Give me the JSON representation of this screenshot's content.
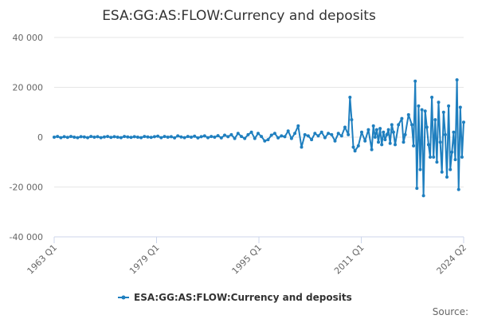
{
  "chart_data": {
    "type": "line",
    "title": "ESA:GG:AS:FLOW:Currency and deposits",
    "xlabel": "",
    "ylabel": "",
    "x_ticks": [
      "1963 Q1",
      "1979 Q1",
      "1995 Q1",
      "2011 Q1",
      "2024 Q2"
    ],
    "y_ticks": [
      "40 000",
      "20 000",
      "0",
      "-20 000",
      "-40 000"
    ],
    "ylim": [
      -40000,
      40000
    ],
    "xlim": [
      0,
      245
    ],
    "grid": true,
    "legend_position": "bottom",
    "source_label": "Source:",
    "series": [
      {
        "name": "ESA:GG:AS:FLOW:Currency and deposits",
        "color": "#1f7fbf",
        "points": [
          [
            0,
            0
          ],
          [
            2,
            300
          ],
          [
            4,
            -200
          ],
          [
            6,
            200
          ],
          [
            8,
            -100
          ],
          [
            10,
            300
          ],
          [
            12,
            0
          ],
          [
            14,
            -200
          ],
          [
            16,
            200
          ],
          [
            18,
            100
          ],
          [
            20,
            -200
          ],
          [
            22,
            300
          ],
          [
            24,
            0
          ],
          [
            26,
            200
          ],
          [
            28,
            -200
          ],
          [
            30,
            100
          ],
          [
            32,
            300
          ],
          [
            34,
            -100
          ],
          [
            36,
            200
          ],
          [
            38,
            0
          ],
          [
            40,
            -200
          ],
          [
            42,
            300
          ],
          [
            44,
            100
          ],
          [
            46,
            -100
          ],
          [
            48,
            200
          ],
          [
            50,
            0
          ],
          [
            52,
            -200
          ],
          [
            54,
            300
          ],
          [
            56,
            100
          ],
          [
            58,
            -100
          ],
          [
            60,
            200
          ],
          [
            62,
            400
          ],
          [
            64,
            -200
          ],
          [
            66,
            300
          ],
          [
            68,
            0
          ],
          [
            70,
            200
          ],
          [
            72,
            -300
          ],
          [
            74,
            500
          ],
          [
            76,
            100
          ],
          [
            78,
            -200
          ],
          [
            80,
            300
          ],
          [
            82,
            0
          ],
          [
            84,
            400
          ],
          [
            86,
            -300
          ],
          [
            88,
            200
          ],
          [
            90,
            500
          ],
          [
            92,
            -200
          ],
          [
            94,
            300
          ],
          [
            96,
            0
          ],
          [
            98,
            600
          ],
          [
            100,
            -300
          ],
          [
            102,
            800
          ],
          [
            104,
            200
          ],
          [
            106,
            1000
          ],
          [
            108,
            -500
          ],
          [
            110,
            1500
          ],
          [
            112,
            300
          ],
          [
            114,
            -500
          ],
          [
            116,
            1000
          ],
          [
            118,
            2000
          ],
          [
            120,
            -500
          ],
          [
            122,
            1500
          ],
          [
            124,
            300
          ],
          [
            126,
            -1500
          ],
          [
            128,
            -1000
          ],
          [
            130,
            800
          ],
          [
            132,
            1500
          ],
          [
            134,
            -300
          ],
          [
            136,
            500
          ],
          [
            138,
            200
          ],
          [
            140,
            2500
          ],
          [
            142,
            -500
          ],
          [
            144,
            1500
          ],
          [
            146,
            4500
          ],
          [
            148,
            -4000
          ],
          [
            150,
            1000
          ],
          [
            152,
            500
          ],
          [
            154,
            -1000
          ],
          [
            156,
            1500
          ],
          [
            158,
            500
          ],
          [
            160,
            2000
          ],
          [
            162,
            -200
          ],
          [
            164,
            1500
          ],
          [
            166,
            1000
          ],
          [
            168,
            -1500
          ],
          [
            170,
            1500
          ],
          [
            172,
            500
          ],
          [
            174,
            4000
          ],
          [
            176,
            1000
          ],
          [
            177,
            16000
          ],
          [
            178,
            7000
          ],
          [
            179,
            -4000
          ],
          [
            180,
            -5500
          ],
          [
            182,
            -3500
          ],
          [
            184,
            2000
          ],
          [
            186,
            -1500
          ],
          [
            188,
            3000
          ],
          [
            190,
            -5000
          ],
          [
            191,
            4500
          ],
          [
            192,
            0
          ],
          [
            193,
            3000
          ],
          [
            194,
            -2000
          ],
          [
            195,
            3500
          ],
          [
            196,
            -3000
          ],
          [
            197,
            2000
          ],
          [
            198,
            -1000
          ],
          [
            199,
            1000
          ],
          [
            200,
            3000
          ],
          [
            201,
            -2500
          ],
          [
            202,
            5000
          ],
          [
            203,
            2000
          ],
          [
            204,
            -3000
          ],
          [
            206,
            5000
          ],
          [
            208,
            7500
          ],
          [
            209,
            -2000
          ],
          [
            210,
            1000
          ],
          [
            212,
            9000
          ],
          [
            214,
            5000
          ],
          [
            215,
            -3500
          ],
          [
            216,
            22500
          ],
          [
            217,
            -20500
          ],
          [
            218,
            12500
          ],
          [
            219,
            -13000
          ],
          [
            220,
            11000
          ],
          [
            221,
            -23500
          ],
          [
            222,
            10500
          ],
          [
            223,
            4000
          ],
          [
            224,
            -3000
          ],
          [
            225,
            -8000
          ],
          [
            226,
            16000
          ],
          [
            227,
            -8000
          ],
          [
            228,
            7000
          ],
          [
            229,
            -10000
          ],
          [
            230,
            14000
          ],
          [
            231,
            -2000
          ],
          [
            232,
            -14000
          ],
          [
            233,
            10000
          ],
          [
            234,
            1000
          ],
          [
            235,
            -16000
          ],
          [
            236,
            12500
          ],
          [
            237,
            -13000
          ],
          [
            238,
            -6000
          ],
          [
            239,
            2000
          ],
          [
            240,
            -9000
          ],
          [
            241,
            23000
          ],
          [
            242,
            -21000
          ],
          [
            243,
            12000
          ],
          [
            244,
            -8000
          ],
          [
            245,
            6000
          ]
        ]
      }
    ]
  }
}
